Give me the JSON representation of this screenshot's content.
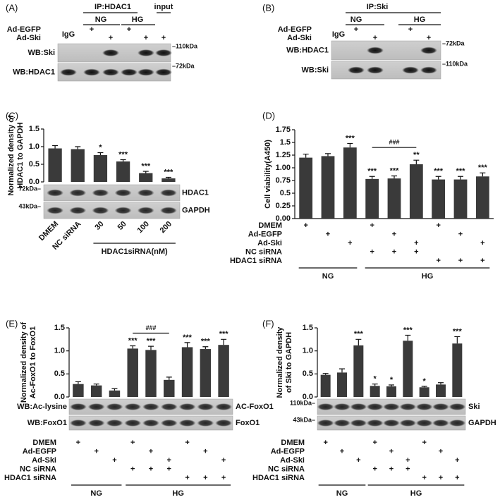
{
  "blots": [
    {
      "panel": "(A)",
      "ip": "IP:HDAC1",
      "input": "input",
      "groups": [
        "NG",
        "HG"
      ],
      "igg": "IgG",
      "rows": [
        {
          "label": "Ad-EGFP",
          "marks": [
            null,
            "+",
            null,
            "+",
            null,
            null
          ]
        },
        {
          "label": "Ad-Ski",
          "marks": [
            null,
            null,
            "+",
            null,
            "+",
            "+"
          ]
        }
      ],
      "wb": [
        "WB:Ski",
        "WB:HDAC1"
      ],
      "kda": [
        "–110kDa",
        "–72kDa"
      ]
    },
    {
      "panel": "(B)",
      "ip": "IP:Ski",
      "groups": [
        "NG",
        "HG"
      ],
      "igg": "IgG",
      "rows": [
        {
          "label": "Ad-EGFP",
          "marks": [
            null,
            "+",
            null,
            "+",
            null
          ]
        },
        {
          "label": "Ad-Ski",
          "marks": [
            null,
            null,
            "+",
            null,
            "+"
          ]
        }
      ],
      "wb": [
        "WB:HDAC1",
        "WB:Ski"
      ],
      "kda": [
        "–72kDa",
        "–110kDa"
      ]
    }
  ],
  "chart_data": [
    {
      "type": "bar",
      "panel": "(C)",
      "y_label": [
        "Normalized density of",
        "HDAC1 to GAPDH"
      ],
      "color": "#3a3a3a",
      "categories": [
        "DMEM",
        "NC siRNA",
        "30",
        "50",
        "100",
        "200"
      ],
      "values": [
        0.95,
        0.93,
        0.76,
        0.58,
        0.25,
        0.1
      ],
      "errors": [
        0.08,
        0.07,
        0.07,
        0.05,
        0.05,
        0.03
      ],
      "annotations": [
        null,
        null,
        "*",
        "***",
        "***",
        "***"
      ],
      "ylim": [
        0,
        1.5
      ],
      "yticks": [
        {
          "value": 0,
          "label": "0.0"
        },
        {
          "value": 0.5,
          "label": "0.5"
        },
        {
          "value": 1,
          "label": "1.0"
        },
        {
          "value": 1.5,
          "label": "1.5"
        }
      ],
      "blot_left": [
        "72kDa–",
        "43kDa–"
      ],
      "blot_right": [
        "HDAC1",
        "GAPDH"
      ],
      "conditions": [],
      "groups": [
        {
          "label": "HDAC1siRNA(nM)",
          "from": 2,
          "to": 5
        }
      ],
      "brackets": []
    },
    {
      "type": "bar",
      "panel": "(D)",
      "y_label": [
        "Cell viability(A450)"
      ],
      "color": "#3a3a3a",
      "categories": [
        null,
        null,
        null,
        null,
        null,
        null,
        null,
        null,
        null
      ],
      "values": [
        1.2,
        1.23,
        1.4,
        0.78,
        0.79,
        1.07,
        0.77,
        0.77,
        0.83
      ],
      "errors": [
        0.07,
        0.05,
        0.08,
        0.05,
        0.05,
        0.08,
        0.06,
        0.06,
        0.07
      ],
      "annotations": [
        null,
        null,
        "***",
        "***",
        "***",
        "**",
        "***",
        "***",
        "***"
      ],
      "ylim": [
        0,
        1.75
      ],
      "yticks": [
        {
          "value": 0,
          "label": "0.00"
        },
        0.25,
        0.5,
        0.75,
        {
          "value": 1,
          "label": "1.00"
        },
        1.25,
        1.5,
        1.75
      ],
      "blot_left": [],
      "blot_right": [],
      "conditions": [
        {
          "label": "DMEM",
          "marks": [
            "+",
            null,
            null,
            "+",
            null,
            null,
            "+",
            null,
            null
          ]
        },
        {
          "label": "Ad-EGFP",
          "marks": [
            null,
            "+",
            null,
            null,
            "+",
            null,
            null,
            "+",
            null
          ]
        },
        {
          "label": "Ad-Ski",
          "marks": [
            null,
            null,
            "+",
            null,
            null,
            "+",
            null,
            null,
            "+"
          ]
        },
        {
          "label": "NC siRNA",
          "marks": [
            null,
            null,
            null,
            "+",
            "+",
            "+",
            null,
            null,
            null
          ]
        },
        {
          "label": "HDAC1 siRNA",
          "marks": [
            null,
            null,
            null,
            null,
            null,
            null,
            "+",
            "+",
            "+"
          ]
        }
      ],
      "groups": [
        {
          "label": "NG",
          "from": 0,
          "to": 2
        },
        {
          "label": "HG",
          "from": 3,
          "to": 8
        }
      ],
      "brackets": [
        {
          "label": "###",
          "from": 3,
          "to": 5
        }
      ]
    },
    {
      "type": "bar",
      "panel": "(E)",
      "y_label": [
        "Normalized density of",
        "Ac-FoxO1 to FoxO1"
      ],
      "color": "#3a3a3a",
      "categories": [
        null,
        null,
        null,
        null,
        null,
        null,
        null,
        null,
        null
      ],
      "values": [
        0.28,
        0.25,
        0.14,
        1.05,
        1.02,
        0.37,
        1.08,
        1.04,
        1.13
      ],
      "errors": [
        0.05,
        0.03,
        0.04,
        0.06,
        0.08,
        0.06,
        0.1,
        0.05,
        0.12
      ],
      "annotations": [
        null,
        null,
        null,
        "***",
        "***",
        null,
        "***",
        "***",
        "***"
      ],
      "ylim": [
        0,
        1.5
      ],
      "yticks": [
        {
          "value": 0,
          "label": "0.0"
        },
        {
          "value": 0.5,
          "label": "0.5"
        },
        {
          "value": 1,
          "label": "1.0"
        },
        {
          "value": 1.5,
          "label": "1.5"
        }
      ],
      "blot_left": [
        "WB:Ac-lysine",
        "WB:FoxO1"
      ],
      "blot_right": [
        "AC-FoxO1",
        "FoxO1"
      ],
      "conditions": [
        {
          "label": "DMEM",
          "marks": [
            "+",
            null,
            null,
            "+",
            null,
            null,
            "+",
            null,
            null
          ]
        },
        {
          "label": "Ad-EGFP",
          "marks": [
            null,
            "+",
            null,
            null,
            "+",
            null,
            null,
            "+",
            null
          ]
        },
        {
          "label": "Ad-Ski",
          "marks": [
            null,
            null,
            "+",
            null,
            null,
            "+",
            null,
            null,
            "+"
          ]
        },
        {
          "label": "NC siRNA",
          "marks": [
            null,
            null,
            null,
            "+",
            "+",
            "+",
            null,
            null,
            null
          ]
        },
        {
          "label": "HDAC1 siRNA",
          "marks": [
            null,
            null,
            null,
            null,
            null,
            null,
            "+",
            "+",
            "+"
          ]
        }
      ],
      "groups": [
        {
          "label": "NG",
          "from": 0,
          "to": 2
        },
        {
          "label": "HG",
          "from": 3,
          "to": 8
        }
      ],
      "brackets": [
        {
          "label": "###",
          "from": 3,
          "to": 5
        }
      ]
    },
    {
      "type": "bar",
      "panel": "(F)",
      "y_label": [
        "Normalized density",
        "of Ski to GAPDH"
      ],
      "color": "#3a3a3a",
      "categories": [
        null,
        null,
        null,
        null,
        null,
        null,
        null,
        null,
        null
      ],
      "values": [
        0.48,
        0.53,
        1.12,
        0.24,
        0.23,
        1.22,
        0.21,
        0.27,
        1.16
      ],
      "errors": [
        0.03,
        0.08,
        0.13,
        0.04,
        0.03,
        0.12,
        0.02,
        0.04,
        0.15
      ],
      "annotations": [
        null,
        null,
        "***",
        "*",
        "*",
        "***",
        "*",
        null,
        "***"
      ],
      "ylim": [
        0,
        1.5
      ],
      "yticks": [
        {
          "value": 0,
          "label": "0.0"
        },
        {
          "value": 0.5,
          "label": "0.5"
        },
        {
          "value": 1,
          "label": "1.0"
        },
        {
          "value": 1.5,
          "label": "1.5"
        }
      ],
      "blot_left": [
        "110kDa–",
        "43kDa–"
      ],
      "blot_right": [
        "Ski",
        "GAPDH"
      ],
      "conditions": [
        {
          "label": "DMEM",
          "marks": [
            "+",
            null,
            null,
            "+",
            null,
            null,
            "+",
            null,
            null
          ]
        },
        {
          "label": "Ad-EGFP",
          "marks": [
            null,
            "+",
            null,
            null,
            "+",
            null,
            null,
            "+",
            null
          ]
        },
        {
          "label": "Ad-Ski",
          "marks": [
            null,
            null,
            "+",
            null,
            null,
            "+",
            null,
            null,
            "+"
          ]
        },
        {
          "label": "NC siRNA",
          "marks": [
            null,
            null,
            null,
            "+",
            "+",
            "+",
            null,
            null,
            null
          ]
        },
        {
          "label": "HDAC1 siRNA",
          "marks": [
            null,
            null,
            null,
            null,
            null,
            null,
            "+",
            "+",
            "+"
          ]
        }
      ],
      "groups": [
        {
          "label": "NG",
          "from": 0,
          "to": 2
        },
        {
          "label": "HG",
          "from": 3,
          "to": 8
        }
      ],
      "brackets": []
    }
  ]
}
